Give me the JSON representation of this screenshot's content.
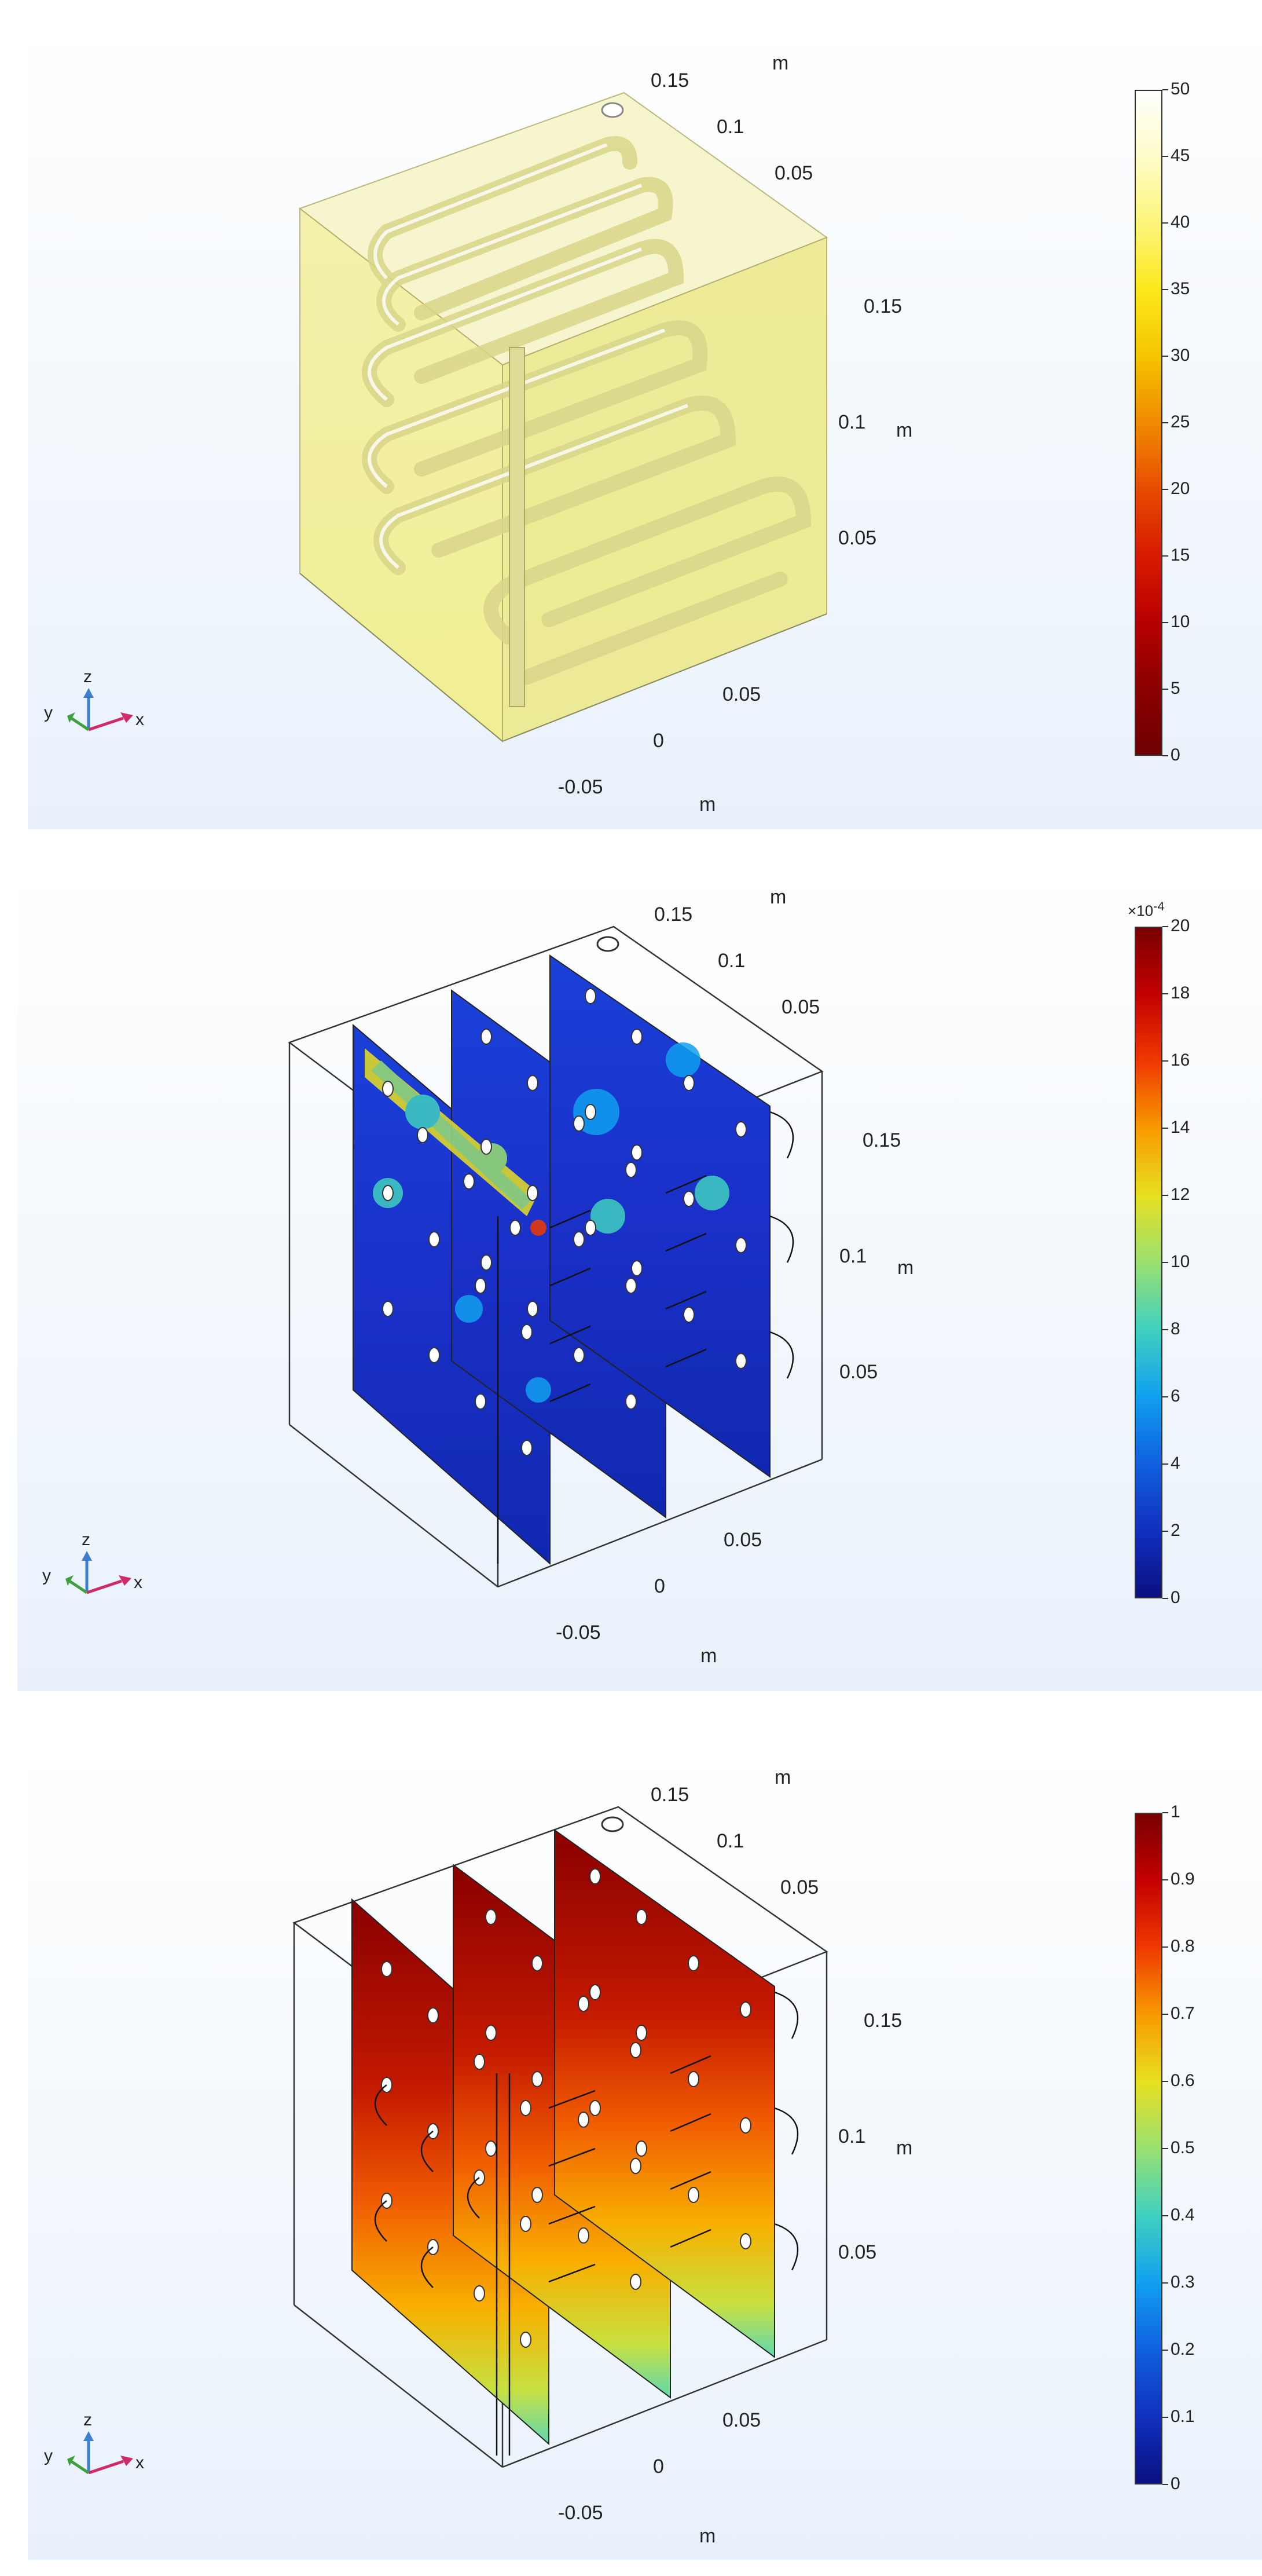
{
  "panels": [
    {
      "colorbar": {
        "ticks": [
          "50",
          "45",
          "40",
          "35",
          "30",
          "25",
          "20",
          "15",
          "10",
          "5",
          "0"
        ],
        "gradient": [
          "#ffffff",
          "#fdfcc8",
          "#fdf57a",
          "#fce81c",
          "#f5c400",
          "#f08a00",
          "#e84c00",
          "#d81a00",
          "#b80000",
          "#8a0000",
          "#6e0000"
        ]
      },
      "axes": {
        "top_m": "m",
        "t015": "0.15",
        "t01": "0.1",
        "t005": "0.05",
        "r015": "0.15",
        "r01": "0.1",
        "r_m": "m",
        "r005": "0.05",
        "b005": "0.05",
        "b0": "0",
        "bm005": "-0.05",
        "b_m": "m"
      },
      "triad": {
        "x": "x",
        "y": "y",
        "z": "z"
      }
    },
    {
      "colorbar": {
        "exponent": "×10",
        "exponent_power": "-4",
        "ticks": [
          "20",
          "18",
          "16",
          "14",
          "12",
          "10",
          "8",
          "6",
          "4",
          "2",
          "0"
        ],
        "gradient": [
          "#7a0000",
          "#c40000",
          "#f03a00",
          "#f89a00",
          "#e8e020",
          "#9ae070",
          "#40d0c0",
          "#10a0f0",
          "#1060e0",
          "#1030c0",
          "#0a1080"
        ]
      },
      "axes": {
        "top_m": "m",
        "t015": "0.15",
        "t01": "0.1",
        "t005": "0.05",
        "r015": "0.15",
        "r01": "0.1",
        "r_m": "m",
        "r005": "0.05",
        "b005": "0.05",
        "b0": "0",
        "bm005": "-0.05",
        "b_m": "m"
      },
      "triad": {
        "x": "x",
        "y": "y",
        "z": "z"
      }
    },
    {
      "colorbar": {
        "ticks": [
          "1",
          "0.9",
          "0.8",
          "0.7",
          "0.6",
          "0.5",
          "0.4",
          "0.3",
          "0.2",
          "0.1",
          "0"
        ],
        "gradient": [
          "#7a0000",
          "#c40000",
          "#f03a00",
          "#f89a00",
          "#e8e020",
          "#9ae070",
          "#40d0c0",
          "#10a0f0",
          "#1060e0",
          "#1030c0",
          "#0a1080"
        ]
      },
      "axes": {
        "top_m": "m",
        "t015": "0.15",
        "t01": "0.1",
        "t005": "0.05",
        "r015": "0.15",
        "r01": "0.1",
        "r_m": "m",
        "r005": "0.05",
        "b005": "0.05",
        "b0": "0",
        "bm005": "-0.05",
        "b_m": "m"
      },
      "triad": {
        "x": "x",
        "y": "y",
        "z": "z"
      }
    }
  ]
}
